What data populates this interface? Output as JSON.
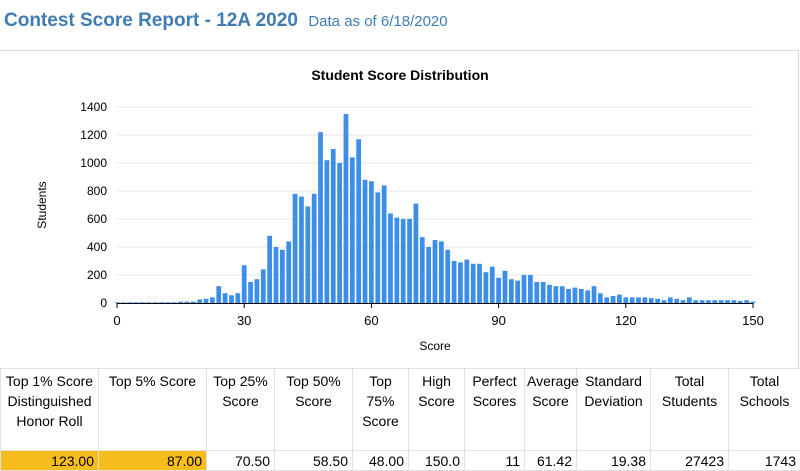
{
  "header": {
    "title": "Contest Score Report -  12A 2020",
    "subtitle": "Data as of 6/18/2020"
  },
  "chart_data": {
    "type": "bar",
    "title": "Student Score Distribution",
    "xlabel": "Score",
    "ylabel": "Students",
    "xlim": [
      0,
      150
    ],
    "ylim": [
      0,
      1400
    ],
    "xticks": [
      0,
      30,
      60,
      90,
      120,
      150
    ],
    "yticks": [
      0,
      200,
      400,
      600,
      800,
      1000,
      1200,
      1400
    ],
    "grid": true,
    "color": "#3d8ee9",
    "x": [
      0,
      1.5,
      3,
      4.5,
      6,
      7.5,
      9,
      10.5,
      12,
      13.5,
      15,
      16.5,
      18,
      19.5,
      21,
      22.5,
      24,
      25.5,
      27,
      28.5,
      30,
      31.5,
      33,
      34.5,
      36,
      37.5,
      39,
      40.5,
      42,
      43.5,
      45,
      46.5,
      48,
      49.5,
      51,
      52.5,
      54,
      55.5,
      57,
      58.5,
      60,
      61.5,
      63,
      64.5,
      66,
      67.5,
      69,
      70.5,
      72,
      73.5,
      75,
      76.5,
      78,
      79.5,
      81,
      82.5,
      84,
      85.5,
      87,
      88.5,
      90,
      91.5,
      93,
      94.5,
      96,
      97.5,
      99,
      100.5,
      102,
      103.5,
      105,
      106.5,
      108,
      109.5,
      111,
      112.5,
      114,
      115.5,
      117,
      118.5,
      120,
      121.5,
      123,
      124.5,
      126,
      127.5,
      129,
      130.5,
      132,
      133.5,
      135,
      136.5,
      138,
      139.5,
      141,
      142.5,
      144,
      145.5,
      147,
      148.5,
      150
    ],
    "values": [
      5,
      5,
      5,
      5,
      5,
      5,
      5,
      5,
      5,
      5,
      10,
      10,
      10,
      25,
      30,
      40,
      120,
      70,
      55,
      70,
      270,
      150,
      170,
      240,
      480,
      400,
      380,
      440,
      780,
      760,
      690,
      780,
      1220,
      1020,
      1100,
      1000,
      1350,
      1040,
      1170,
      880,
      870,
      790,
      840,
      640,
      610,
      600,
      600,
      710,
      470,
      400,
      450,
      440,
      380,
      300,
      290,
      310,
      280,
      280,
      220,
      260,
      180,
      230,
      170,
      160,
      200,
      200,
      150,
      150,
      130,
      120,
      120,
      100,
      110,
      100,
      90,
      120,
      70,
      40,
      50,
      60,
      40,
      40,
      40,
      40,
      35,
      30,
      20,
      40,
      30,
      20,
      40,
      20,
      20,
      20,
      20,
      20,
      20,
      20,
      15,
      20,
      10
    ]
  },
  "stats": {
    "headers": [
      "Top 1% Score Distinguished Honor Roll",
      "Top 5% Score",
      "Top 25% Score",
      "Top 50% Score",
      "Top 75% Score",
      "High Score",
      "Perfect Scores",
      "Average Score",
      "Standard Deviation",
      "Total Students",
      "Total Schools"
    ],
    "values": [
      "123.00",
      "87.00",
      "70.50",
      "58.50",
      "48.00",
      "150.0",
      "11",
      "61.42",
      "19.38",
      "27423",
      "1743"
    ]
  }
}
